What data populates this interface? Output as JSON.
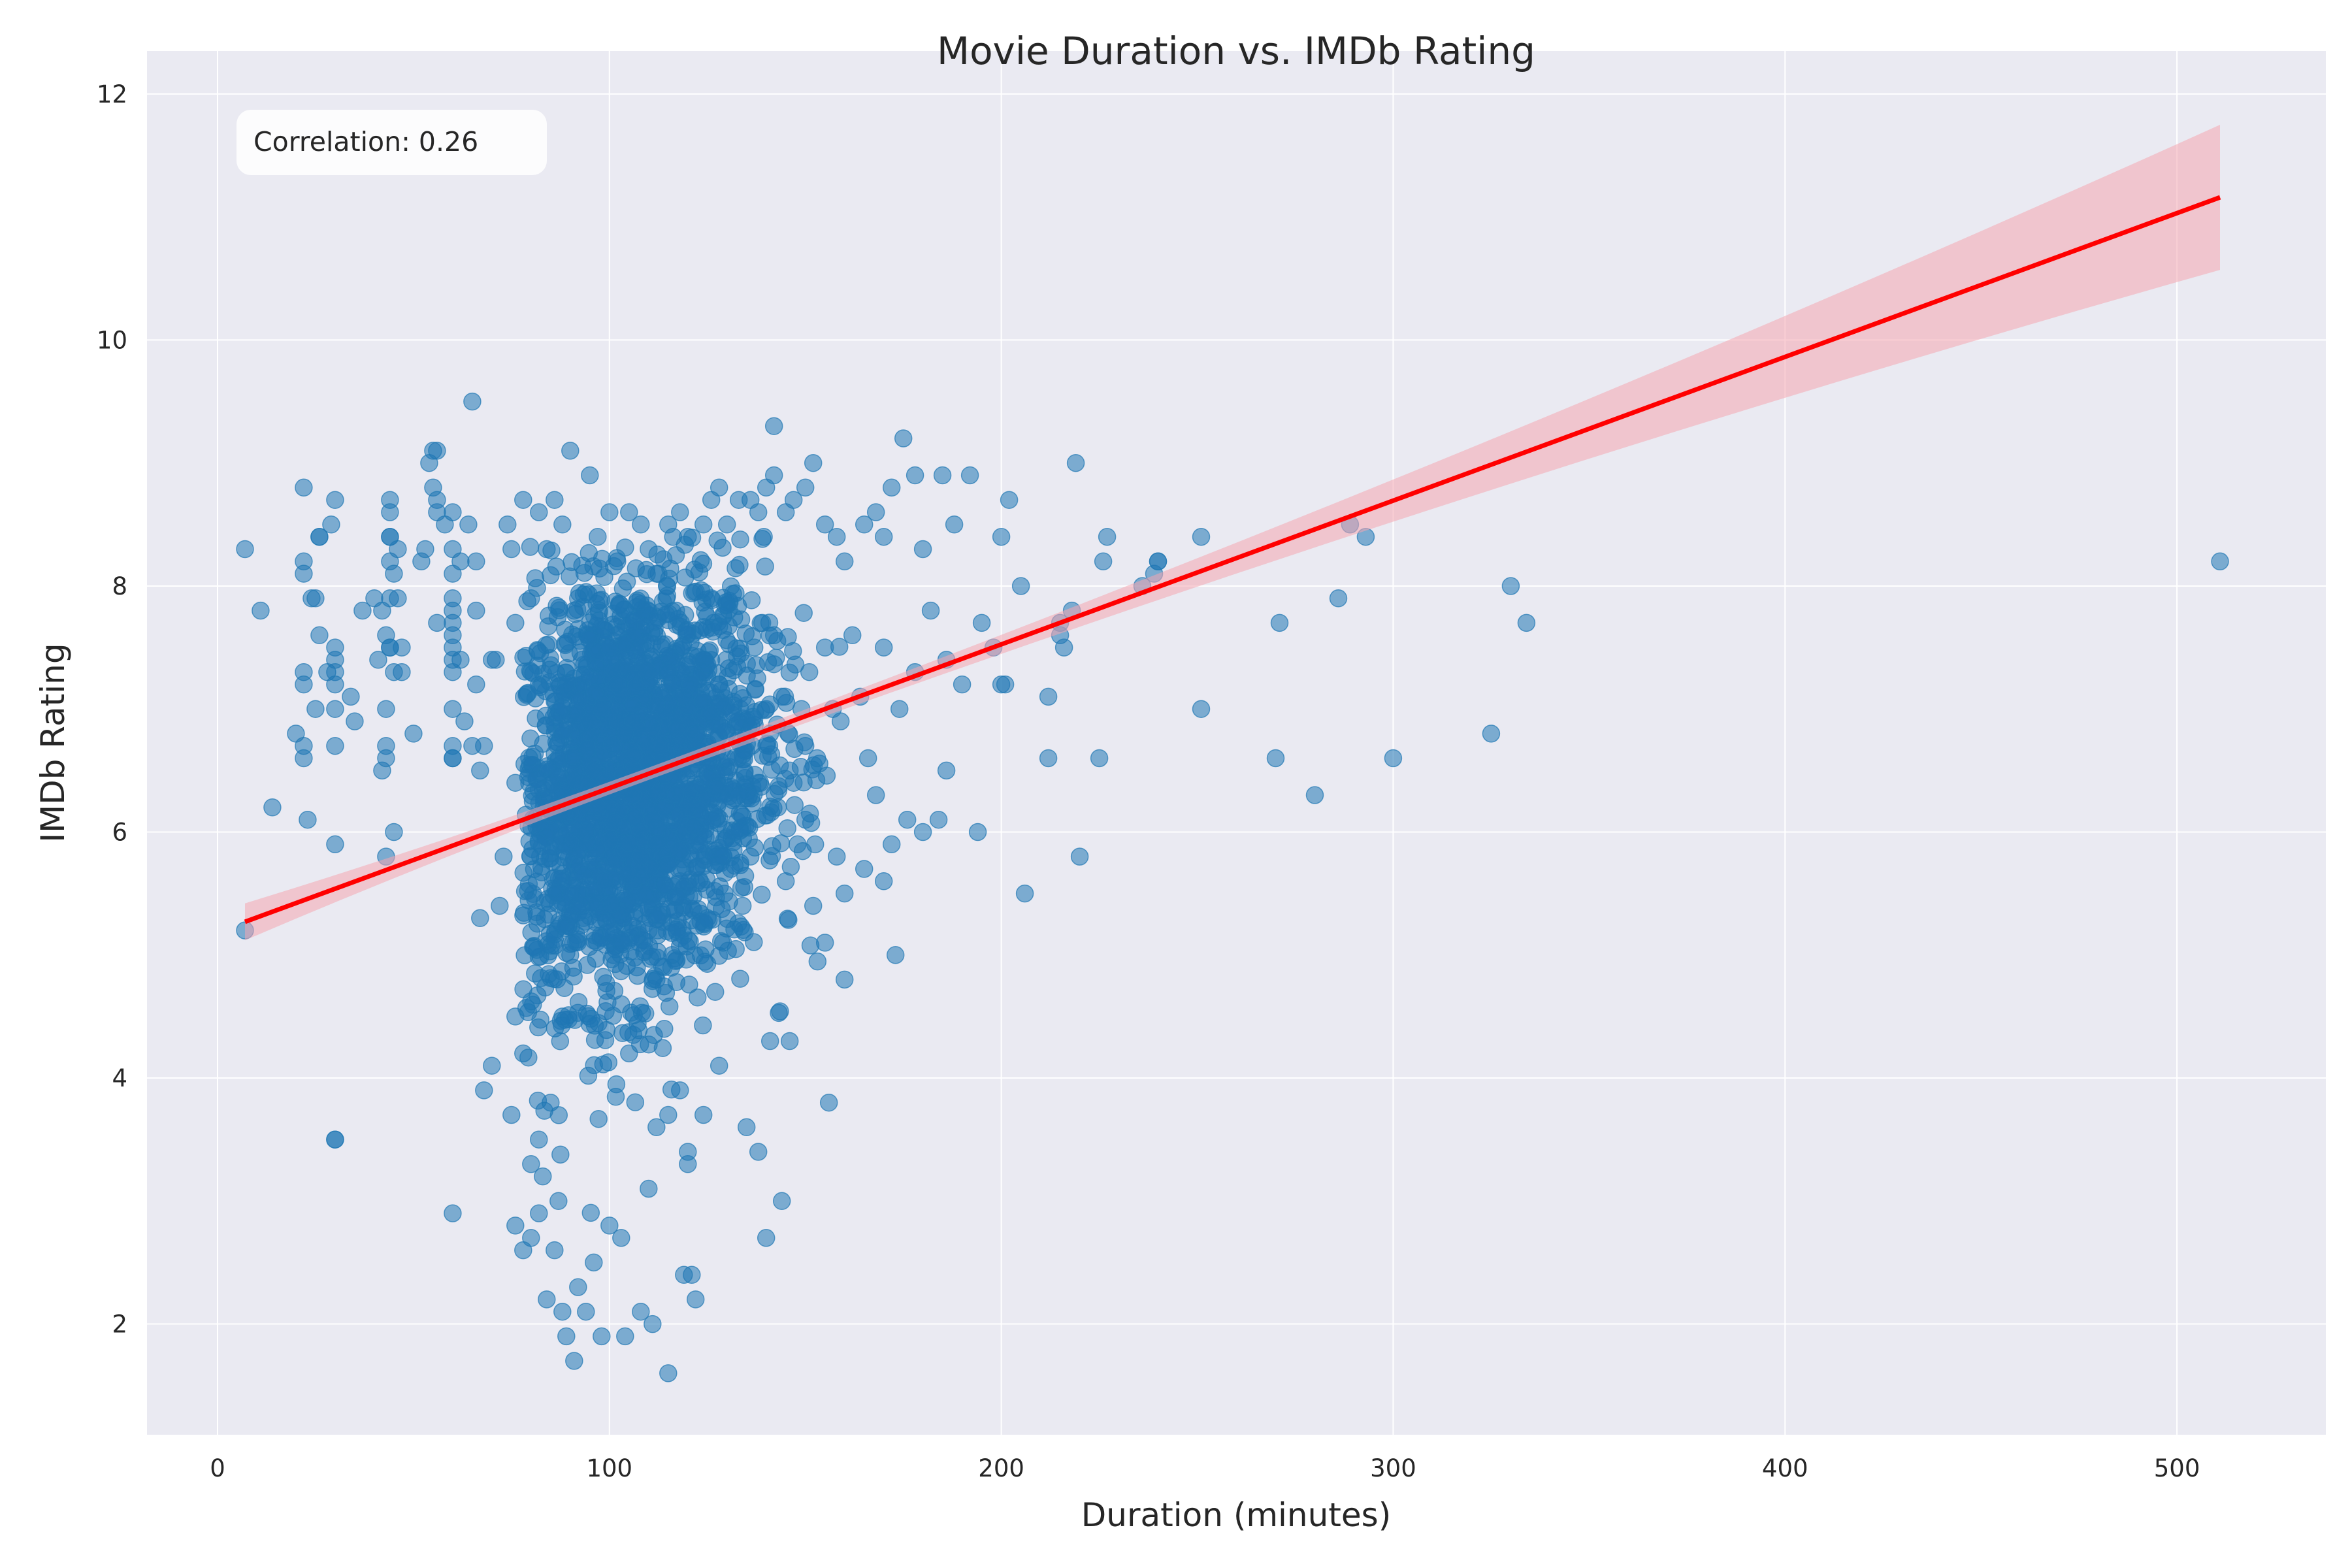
{
  "chart_data": {
    "type": "scatter",
    "title": "Movie Duration vs. IMDb Rating",
    "xlabel": "Duration (minutes)",
    "ylabel": "IMDb Rating",
    "xlim": [
      -18,
      538
    ],
    "ylim": [
      1.1,
      12.35
    ],
    "xticks": [
      0,
      100,
      200,
      300,
      400,
      500
    ],
    "yticks": [
      2,
      4,
      6,
      8,
      10,
      12
    ],
    "grid": true,
    "annotation": "Correlation: 0.26",
    "annotation_position": "top-left",
    "colors": {
      "background": "#eaeaf2",
      "points": "#1f77b4",
      "fit_line": "#ff0000",
      "confidence_band": "#f4a6b0",
      "grid": "#ffffff"
    },
    "regression": {
      "x": [
        7,
        511
      ],
      "y": [
        5.27,
        11.16
      ],
      "band_upper": [
        5.42,
        11.75
      ],
      "band_lower": [
        5.12,
        10.58
      ]
    },
    "points": [
      [
        7,
        8.3
      ],
      [
        7,
        5.2
      ],
      [
        11,
        7.8
      ],
      [
        14,
        6.2
      ],
      [
        20,
        6.8
      ],
      [
        22,
        8.8
      ],
      [
        22,
        8.2
      ],
      [
        22,
        8.1
      ],
      [
        22,
        7.3
      ],
      [
        22,
        7.2
      ],
      [
        22,
        6.7
      ],
      [
        22,
        6.6
      ],
      [
        23,
        6.1
      ],
      [
        24,
        7.9
      ],
      [
        25,
        7.9
      ],
      [
        25,
        7.0
      ],
      [
        26,
        8.4
      ],
      [
        26,
        8.4
      ],
      [
        26,
        7.6
      ],
      [
        28,
        7.3
      ],
      [
        29,
        8.5
      ],
      [
        30,
        8.7
      ],
      [
        30,
        7.5
      ],
      [
        30,
        7.4
      ],
      [
        30,
        7.3
      ],
      [
        30,
        7.2
      ],
      [
        30,
        7.0
      ],
      [
        30,
        6.7
      ],
      [
        30,
        5.9
      ],
      [
        30,
        3.5
      ],
      [
        30,
        3.5
      ],
      [
        34,
        7.1
      ],
      [
        35,
        6.9
      ],
      [
        37,
        7.8
      ],
      [
        40,
        7.9
      ],
      [
        41,
        7.4
      ],
      [
        42,
        6.5
      ],
      [
        42,
        7.8
      ],
      [
        43,
        7.6
      ],
      [
        43,
        7.0
      ],
      [
        43,
        6.7
      ],
      [
        43,
        6.6
      ],
      [
        43,
        5.8
      ],
      [
        44,
        8.7
      ],
      [
        44,
        8.6
      ],
      [
        44,
        8.4
      ],
      [
        44,
        8.4
      ],
      [
        44,
        8.2
      ],
      [
        44,
        7.9
      ],
      [
        44,
        7.5
      ],
      [
        44,
        7.5
      ],
      [
        45,
        7.3
      ],
      [
        45,
        8.1
      ],
      [
        45,
        6.0
      ],
      [
        46,
        8.3
      ],
      [
        46,
        7.9
      ],
      [
        47,
        7.5
      ],
      [
        47,
        7.3
      ],
      [
        50,
        6.8
      ],
      [
        52,
        8.2
      ],
      [
        53,
        8.3
      ],
      [
        54,
        9.0
      ],
      [
        55,
        8.8
      ],
      [
        55,
        9.1
      ],
      [
        56,
        9.1
      ],
      [
        56,
        8.7
      ],
      [
        56,
        8.6
      ],
      [
        56,
        7.7
      ],
      [
        58,
        8.5
      ],
      [
        60,
        8.6
      ],
      [
        60,
        8.3
      ],
      [
        60,
        8.1
      ],
      [
        60,
        7.9
      ],
      [
        60,
        7.8
      ],
      [
        60,
        7.7
      ],
      [
        60,
        7.6
      ],
      [
        60,
        7.5
      ],
      [
        60,
        7.4
      ],
      [
        60,
        7.3
      ],
      [
        60,
        7.0
      ],
      [
        60,
        6.7
      ],
      [
        60,
        6.6
      ],
      [
        60,
        6.6
      ],
      [
        60,
        2.9
      ],
      [
        62,
        8.2
      ],
      [
        62,
        7.4
      ],
      [
        63,
        6.9
      ],
      [
        64,
        8.5
      ],
      [
        65,
        9.5
      ],
      [
        65,
        6.7
      ],
      [
        66,
        8.2
      ],
      [
        66,
        7.8
      ],
      [
        66,
        7.2
      ],
      [
        67,
        6.5
      ],
      [
        67,
        5.3
      ],
      [
        68,
        6.7
      ],
      [
        68,
        3.9
      ],
      [
        70,
        7.4
      ],
      [
        70,
        4.1
      ],
      [
        71,
        7.4
      ],
      [
        72,
        5.4
      ],
      [
        73,
        5.8
      ],
      [
        74,
        8.5
      ],
      [
        75,
        8.3
      ],
      [
        76,
        7.7
      ],
      [
        76,
        6.4
      ],
      [
        78,
        8.7
      ],
      [
        80,
        7.9
      ],
      [
        80,
        7.3
      ],
      [
        82,
        8.6
      ],
      [
        84,
        8.3
      ],
      [
        86,
        8.7
      ],
      [
        88,
        8.5
      ],
      [
        90,
        9.1
      ],
      [
        92,
        7.9
      ],
      [
        95,
        8.9
      ],
      [
        97,
        8.4
      ],
      [
        100,
        8.6
      ],
      [
        102,
        8.2
      ],
      [
        105,
        8.6
      ],
      [
        108,
        8.5
      ],
      [
        110,
        8.3
      ],
      [
        112,
        8.1
      ],
      [
        115,
        8.5
      ],
      [
        118,
        8.6
      ],
      [
        120,
        8.4
      ],
      [
        124,
        8.5
      ],
      [
        126,
        8.7
      ],
      [
        128,
        8.8
      ],
      [
        130,
        8.5
      ],
      [
        133,
        8.7
      ],
      [
        136,
        8.7
      ],
      [
        138,
        8.6
      ],
      [
        140,
        8.8
      ],
      [
        142,
        9.3
      ],
      [
        142,
        8.9
      ],
      [
        145,
        8.6
      ],
      [
        147,
        8.7
      ],
      [
        150,
        8.8
      ],
      [
        152,
        9.0
      ],
      [
        155,
        8.5
      ],
      [
        158,
        8.4
      ],
      [
        160,
        8.2
      ],
      [
        165,
        8.5
      ],
      [
        168,
        8.6
      ],
      [
        170,
        8.4
      ],
      [
        172,
        8.8
      ],
      [
        175,
        9.2
      ],
      [
        178,
        8.9
      ],
      [
        180,
        8.3
      ],
      [
        185,
        8.9
      ],
      [
        188,
        8.5
      ],
      [
        192,
        8.9
      ],
      [
        200,
        8.4
      ],
      [
        202,
        8.7
      ],
      [
        205,
        8.0
      ],
      [
        212,
        7.1
      ],
      [
        212,
        6.6
      ],
      [
        215,
        7.7
      ],
      [
        215,
        7.6
      ],
      [
        216,
        7.5
      ],
      [
        218,
        7.8
      ],
      [
        219,
        9.0
      ],
      [
        220,
        5.8
      ],
      [
        225,
        6.6
      ],
      [
        226,
        8.2
      ],
      [
        227,
        8.4
      ],
      [
        236,
        8.0
      ],
      [
        239,
        8.1
      ],
      [
        240,
        8.2
      ],
      [
        240,
        8.2
      ],
      [
        251,
        8.4
      ],
      [
        251,
        7.0
      ],
      [
        270,
        6.6
      ],
      [
        271,
        7.7
      ],
      [
        280,
        6.3
      ],
      [
        286,
        7.9
      ],
      [
        289,
        8.5
      ],
      [
        293,
        8.4
      ],
      [
        300,
        6.6
      ],
      [
        325,
        6.8
      ],
      [
        330,
        8.0
      ],
      [
        334,
        7.7
      ],
      [
        511,
        8.2
      ],
      [
        150,
        6.1
      ],
      [
        152,
        5.4
      ],
      [
        155,
        5.1
      ],
      [
        156,
        3.8
      ],
      [
        158,
        5.8
      ],
      [
        160,
        4.8
      ],
      [
        160,
        5.5
      ],
      [
        165,
        5.7
      ],
      [
        168,
        6.3
      ],
      [
        170,
        5.6
      ],
      [
        172,
        5.9
      ],
      [
        173,
        5.0
      ],
      [
        176,
        6.1
      ],
      [
        180,
        6.0
      ],
      [
        184,
        6.1
      ],
      [
        186,
        6.5
      ],
      [
        194,
        6.0
      ],
      [
        200,
        7.2
      ],
      [
        201,
        7.2
      ],
      [
        206,
        5.5
      ],
      [
        144,
        3.0
      ],
      [
        146,
        4.3
      ],
      [
        141,
        4.3
      ],
      [
        140,
        2.7
      ],
      [
        138,
        3.4
      ],
      [
        135,
        3.6
      ],
      [
        128,
        4.1
      ],
      [
        124,
        3.7
      ],
      [
        122,
        2.2
      ],
      [
        121,
        2.4
      ],
      [
        119,
        2.4
      ],
      [
        120,
        3.3
      ],
      [
        120,
        3.4
      ],
      [
        115,
        1.6
      ],
      [
        111,
        2.0
      ],
      [
        108,
        2.1
      ],
      [
        104,
        1.9
      ],
      [
        103,
        2.7
      ],
      [
        100,
        2.8
      ],
      [
        98,
        1.9
      ],
      [
        96,
        2.5
      ],
      [
        94,
        2.1
      ],
      [
        92,
        2.3
      ],
      [
        91,
        1.7
      ],
      [
        89,
        1.9
      ],
      [
        88,
        2.1
      ],
      [
        86,
        2.6
      ],
      [
        84,
        2.2
      ],
      [
        82,
        2.9
      ],
      [
        80,
        2.7
      ],
      [
        78,
        2.6
      ],
      [
        76,
        2.8
      ],
      [
        75,
        3.7
      ],
      [
        76,
        4.5
      ],
      [
        78,
        4.2
      ],
      [
        80,
        3.3
      ],
      [
        82,
        3.5
      ],
      [
        83,
        3.2
      ],
      [
        85,
        3.8
      ],
      [
        87,
        3.0
      ],
      [
        110,
        3.1
      ],
      [
        112,
        3.6
      ],
      [
        115,
        3.7
      ],
      [
        118,
        3.9
      ],
      [
        88,
        4.5
      ],
      [
        90,
        5.0
      ],
      [
        92,
        5.5
      ],
      [
        94,
        6.0
      ],
      [
        96,
        6.5
      ],
      [
        98,
        7.0
      ],
      [
        100,
        7.5
      ],
      [
        102,
        7.2
      ],
      [
        104,
        6.8
      ],
      [
        106,
        6.3
      ],
      [
        108,
        5.8
      ],
      [
        110,
        5.2
      ],
      [
        112,
        4.8
      ],
      [
        114,
        4.4
      ],
      [
        116,
        5.0
      ],
      [
        118,
        5.6
      ],
      [
        120,
        6.2
      ],
      [
        122,
        6.8
      ],
      [
        124,
        7.4
      ],
      [
        126,
        7.9
      ],
      [
        128,
        7.2
      ],
      [
        130,
        6.6
      ],
      [
        132,
        6.0
      ],
      [
        134,
        5.4
      ],
      [
        136,
        5.8
      ],
      [
        138,
        6.4
      ],
      [
        140,
        7.0
      ],
      [
        142,
        7.6
      ],
      [
        144,
        7.1
      ],
      [
        146,
        6.5
      ],
      [
        148,
        5.9
      ],
      [
        150,
        6.7
      ],
      [
        85,
        6.0
      ],
      [
        87,
        6.6
      ],
      [
        89,
        7.2
      ],
      [
        91,
        7.8
      ],
      [
        93,
        7.4
      ],
      [
        95,
        6.9
      ],
      [
        97,
        6.2
      ],
      [
        99,
        5.6
      ],
      [
        101,
        5.0
      ],
      [
        103,
        4.6
      ],
      [
        105,
        4.2
      ],
      [
        107,
        4.9
      ],
      [
        109,
        5.5
      ],
      [
        111,
        6.1
      ],
      [
        113,
        6.7
      ],
      [
        115,
        7.3
      ],
      [
        117,
        7.8
      ],
      [
        119,
        7.1
      ],
      [
        121,
        6.5
      ],
      [
        123,
        5.9
      ],
      [
        125,
        5.3
      ],
      [
        127,
        4.7
      ],
      [
        129,
        5.1
      ],
      [
        131,
        5.7
      ],
      [
        133,
        6.3
      ],
      [
        135,
        6.9
      ],
      [
        137,
        7.5
      ],
      [
        139,
        7.7
      ],
      [
        141,
        6.8
      ],
      [
        143,
        6.2
      ],
      [
        145,
        5.6
      ],
      [
        147,
        6.4
      ],
      [
        149,
        7.0
      ],
      [
        151,
        7.3
      ],
      [
        153,
        6.6
      ],
      [
        155,
        7.5
      ],
      [
        157,
        7.0
      ],
      [
        159,
        6.9
      ],
      [
        162,
        7.6
      ],
      [
        164,
        7.1
      ],
      [
        166,
        6.6
      ],
      [
        170,
        7.5
      ],
      [
        174,
        7.0
      ],
      [
        178,
        7.3
      ],
      [
        182,
        7.8
      ],
      [
        186,
        7.4
      ],
      [
        190,
        7.2
      ],
      [
        195,
        7.7
      ],
      [
        198,
        7.5
      ]
    ]
  }
}
